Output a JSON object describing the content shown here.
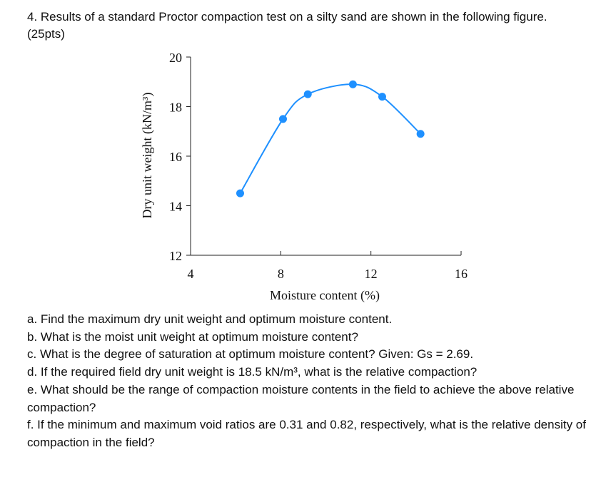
{
  "question": {
    "text": "4. Results of a standard Proctor compaction test on a silty sand are shown in the following figure. (25pts)"
  },
  "chart_data": {
    "type": "line",
    "title": "",
    "xlabel": "Moisture content (%)",
    "ylabel": "Dry unit weight (kN/m³)",
    "xlim": [
      4,
      16
    ],
    "ylim": [
      12,
      20
    ],
    "x_ticks": [
      "4",
      "8",
      "12",
      "16"
    ],
    "y_ticks": [
      "12",
      "14",
      "16",
      "18",
      "20"
    ],
    "grid": false,
    "legend": "none",
    "series": [
      {
        "color": "#1e90ff",
        "x": [
          6.2,
          8.1,
          9.2,
          11.2,
          12.5,
          14.2
        ],
        "y": [
          14.5,
          17.5,
          18.5,
          18.9,
          18.4,
          16.9
        ]
      }
    ]
  },
  "parts": [
    "a. Find the maximum dry unit weight and optimum moisture content.",
    "b. What is the moist unit weight at optimum moisture content?",
    "c. What is the degree of saturation at optimum moisture content? Given: Gs = 2.69.",
    "d. If the required field dry unit weight is 18.5 kN/m³, what is the relative compaction?",
    "e. What should be the range of compaction moisture contents in the field to achieve the above relative compaction?",
    "f. If the minimum and maximum void ratios are 0.31 and 0.82, respectively, what is the relative density of compaction in the field?"
  ]
}
